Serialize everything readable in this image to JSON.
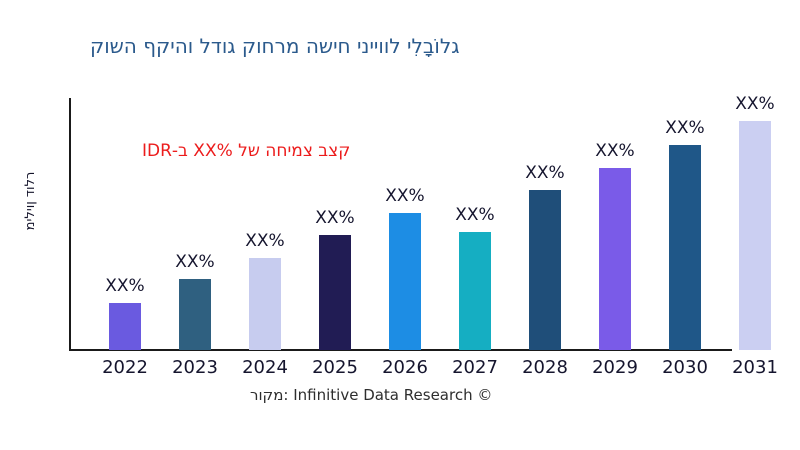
{
  "title": {
    "text": "גלוֹבָלִי לווייני חישה מרחוק גודל והיקף השוק",
    "color": "#2B5A8C"
  },
  "annotation": {
    "text": "קצב צמיחה של %XX ב-IDR",
    "color": "#EC1C1C"
  },
  "source_note": "מקור: Infinitive Data Research ©",
  "chart_data": {
    "type": "bar",
    "title": "גלוֹבָלִי לווייני חישה מרחוק גודל והיקף השוק",
    "ylabel": "מיליון דולר",
    "xlabel": "",
    "categories": [
      "2022",
      "2023",
      "2024",
      "2025",
      "2026",
      "2027",
      "2028",
      "2029",
      "2030",
      "2031"
    ],
    "values": [
      47,
      71,
      92,
      115,
      137,
      118,
      160,
      182,
      205,
      229
    ],
    "values_unit": "pixels-above-axis (no numeric scale shown; all bars labeled XX%)",
    "bar_labels": [
      "XX%",
      "XX%",
      "XX%",
      "XX%",
      "XX%",
      "XX%",
      "XX%",
      "XX%",
      "XX%",
      "XX%"
    ],
    "bar_colors": [
      "#6A5AE0",
      "#2F6080",
      "#C7CCEF",
      "#211C54",
      "#1D8DE4",
      "#15AEC2",
      "#1F4E79",
      "#7A5BE8",
      "#1F5788",
      "#CBCFF2"
    ],
    "grid": "off",
    "legend": "none",
    "value_axis_ticks": "none",
    "annotation_text": "קצב צמיחה של %XX ב-IDR",
    "annotation_color": "#EC1C1C",
    "axis_color": "#1a1a1a",
    "text_color": "#15152E",
    "note": "x-axis line ends before the 2031 bar"
  }
}
